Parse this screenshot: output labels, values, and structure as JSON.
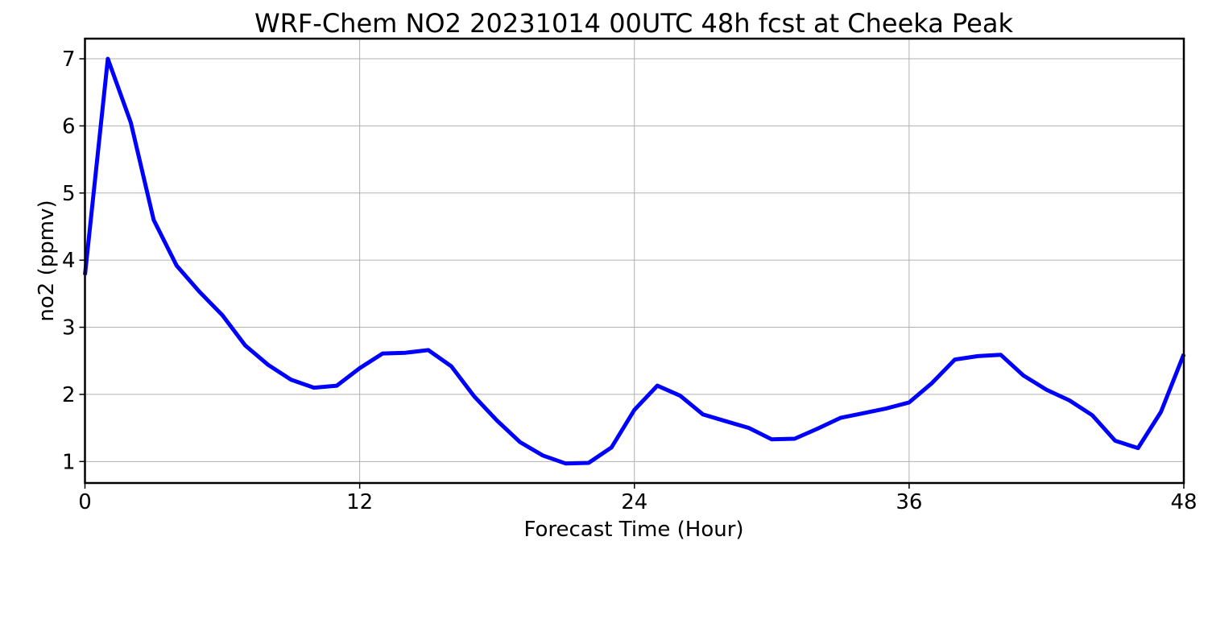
{
  "chart_data": {
    "type": "line",
    "title": "WRF-Chem NO2  20231014 00UTC 48h fcst at Cheeka Peak",
    "xlabel": "Forecast Time (Hour)",
    "ylabel": "no2  (ppmv)",
    "xlim": [
      0,
      48
    ],
    "ylim": [
      0.68,
      7.3
    ],
    "xticks": [
      0,
      12,
      24,
      36,
      48
    ],
    "yticks": [
      1,
      2,
      3,
      4,
      5,
      6,
      7
    ],
    "grid": true,
    "line_color": "#0000ff",
    "series": [
      {
        "x": [
          0,
          1,
          2,
          3,
          4,
          5,
          6,
          7,
          8,
          9,
          10,
          11,
          12,
          13,
          14,
          15,
          16,
          17,
          18,
          19,
          20,
          21,
          22,
          23,
          24,
          25,
          26,
          27,
          28,
          29,
          30,
          31,
          32,
          33,
          34,
          35,
          36,
          37,
          38,
          39,
          40,
          41,
          42,
          43,
          44,
          45,
          46,
          47,
          48
        ],
        "values": [
          3.78,
          7.0,
          6.05,
          4.6,
          3.92,
          3.53,
          3.18,
          2.73,
          2.44,
          2.22,
          2.1,
          2.13,
          2.39,
          2.61,
          2.62,
          2.66,
          2.42,
          1.97,
          1.61,
          1.29,
          1.09,
          0.97,
          0.98,
          1.21,
          1.77,
          2.13,
          1.98,
          1.7,
          1.6,
          1.5,
          1.33,
          1.34,
          1.49,
          1.65,
          1.72,
          1.79,
          1.88,
          2.17,
          2.52,
          2.57,
          2.59,
          2.28,
          2.07,
          1.91,
          1.69,
          1.31,
          1.2,
          1.74,
          2.6
        ]
      }
    ]
  }
}
